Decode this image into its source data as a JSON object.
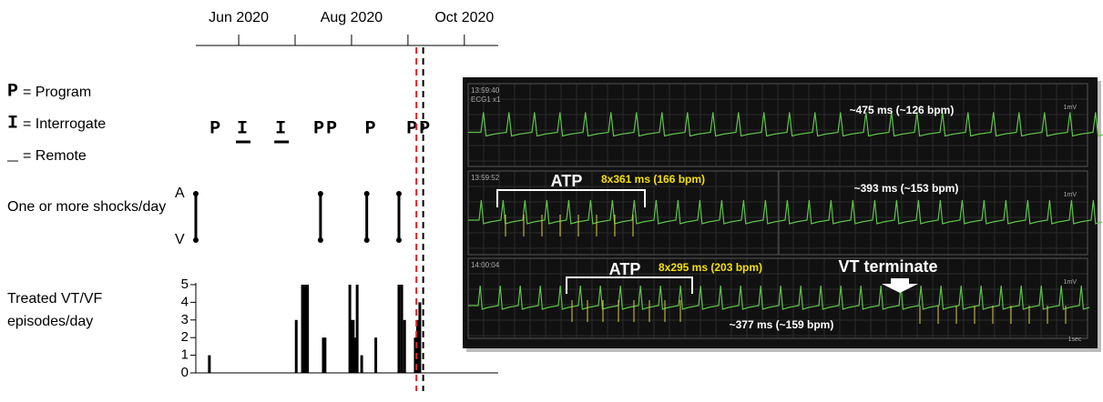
{
  "timeline": {
    "xlim": [
      5.24,
      10.6
    ],
    "xticks": [
      {
        "value": 6,
        "label": "Jun 2020"
      },
      {
        "value": 8,
        "label": "Aug 2020"
      },
      {
        "value": 10,
        "label": "Oct 2020"
      }
    ],
    "xminor": [
      7,
      9
    ],
    "markers": [
      {
        "x": 9.15,
        "color": "#e02020"
      },
      {
        "x": 9.27,
        "color": "#000000"
      }
    ]
  },
  "legend": [
    {
      "symbol": "P",
      "text": "= Program"
    },
    {
      "symbol": "I",
      "text": "= Interrogate"
    },
    {
      "symbol": "_",
      "text": "= Remote"
    }
  ],
  "events": [
    {
      "x": 5.6,
      "label": "P",
      "remote": false
    },
    {
      "x": 6.08,
      "label": "I",
      "remote": true
    },
    {
      "x": 6.76,
      "label": "I",
      "remote": true
    },
    {
      "x": 7.55,
      "label": "PP",
      "remote": false
    },
    {
      "x": 8.35,
      "label": "P",
      "remote": false
    },
    {
      "x": 9.2,
      "label": "PP",
      "remote": false
    }
  ],
  "shocks": {
    "label": "One or more shocks/day",
    "top": "A",
    "bottom": "V",
    "x": [
      5.24,
      7.45,
      8.27,
      8.84
    ]
  },
  "episodes": {
    "label": [
      "Treated VT/VF",
      "episodes/day"
    ],
    "ylim": [
      0,
      5
    ],
    "yticks": [
      0,
      1,
      2,
      3,
      4,
      5
    ],
    "bars": {
      "x": [
        5.48,
        7.02,
        7.13,
        7.16,
        7.19,
        7.22,
        7.5,
        7.53,
        7.97,
        8.0,
        8.03,
        8.06,
        8.1,
        8.18,
        8.43,
        8.84,
        8.89,
        8.94,
        9.13,
        9.17,
        9.21
      ],
      "values": [
        1,
        3,
        5,
        5,
        5,
        5,
        2,
        2,
        5,
        3,
        3,
        2,
        5,
        1,
        2,
        5,
        5,
        3,
        2,
        3,
        4
      ]
    },
    "color": "#000000"
  },
  "ecg": {
    "strips": [
      {
        "time": "13:59:40",
        "lead": "ECG1 x1",
        "scale": "1mV",
        "texts": [
          {
            "t": "~475 ms (~126 bpm)",
            "x": 990,
            "y": 122,
            "c": "#ffffff",
            "s": 12
          }
        ]
      },
      {
        "time": "13:59:52",
        "scale": "1mV",
        "texts": [
          {
            "t": "ATP",
            "x": 622,
            "y": 200,
            "c": "#ffffff",
            "s": 18
          },
          {
            "t": "8x361 ms (166 bpm)",
            "x": 717,
            "y": 198,
            "c": "#f5e000",
            "s": 12
          },
          {
            "t": "~393 ms (~153 bpm)",
            "x": 995,
            "y": 208,
            "c": "#ffffff",
            "s": 12
          }
        ]
      },
      {
        "time": "14:00:04",
        "scale": "1mV",
        "texts": [
          {
            "t": "ATP",
            "x": 686,
            "y": 297,
            "c": "#ffffff",
            "s": 18
          },
          {
            "t": "8x295 ms (203 bpm)",
            "x": 780,
            "y": 295,
            "c": "#f5e000",
            "s": 12
          },
          {
            "t": "VT terminate",
            "x": 975,
            "y": 294,
            "c": "#ffffff",
            "s": 18
          },
          {
            "t": "~377 ms (~159 bpm)",
            "x": 858,
            "y": 358,
            "c": "#ffffff",
            "s": 12
          }
        ]
      }
    ],
    "time_scale": "1sec"
  }
}
